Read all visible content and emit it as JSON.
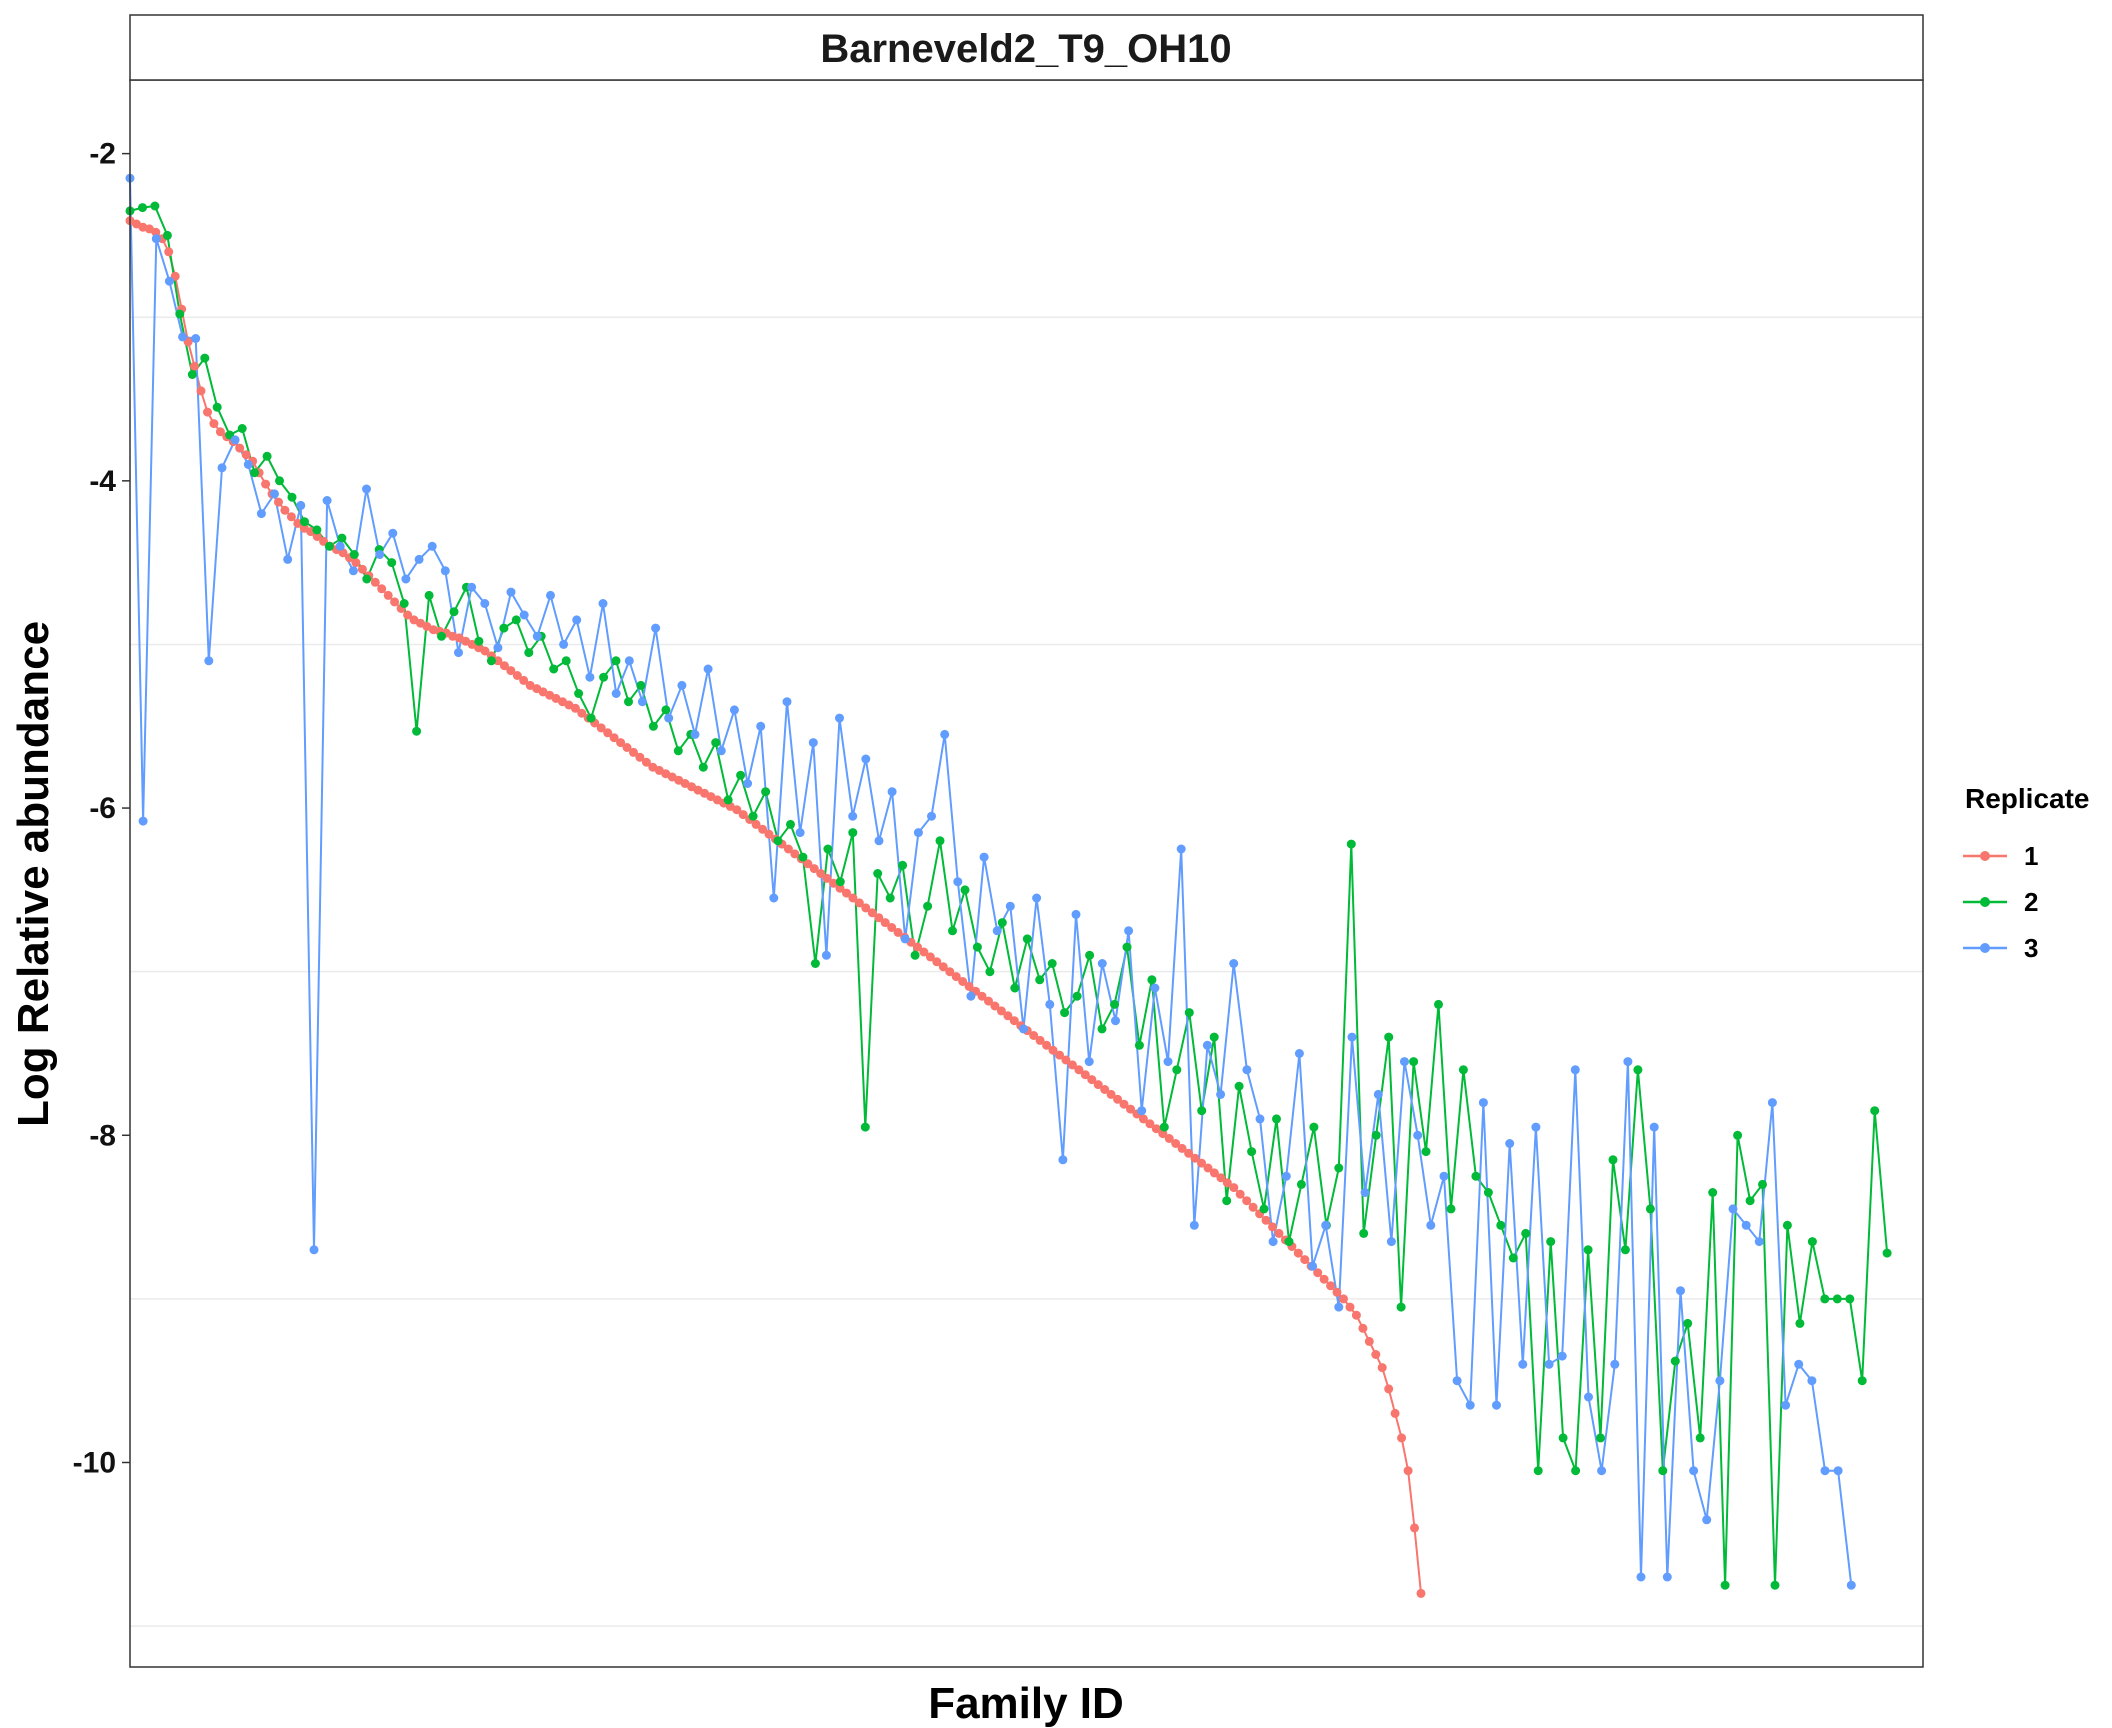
{
  "chart_data": {
    "type": "line",
    "title": "Barneveld2_T9_OH10",
    "xlabel": "Family ID",
    "ylabel": "Log Relative abundance",
    "xlim": [
      0,
      268
    ],
    "ylim": [
      -11.25,
      -1.55
    ],
    "y_ticks": [
      -2,
      -4,
      -6,
      -8,
      -10
    ],
    "y_tick_labels": [
      "-2",
      "-4",
      "-6",
      "-8",
      "-10"
    ],
    "minor_gridlines_y": [
      -3,
      -5,
      -7,
      -9,
      -11
    ],
    "grid": true,
    "legend": {
      "title": "Replicate",
      "position": "right"
    },
    "series": [
      {
        "name": "1",
        "color": "#F8766D",
        "values": [
          -2.41,
          -2.43,
          -2.45,
          -2.46,
          -2.48,
          -2.52,
          -2.6,
          -2.75,
          -2.95,
          -3.15,
          -3.3,
          -3.45,
          -3.58,
          -3.65,
          -3.7,
          -3.73,
          -3.76,
          -3.8,
          -3.84,
          -3.88,
          -3.95,
          -4.02,
          -4.08,
          -4.13,
          -4.18,
          -4.22,
          -4.26,
          -4.29,
          -4.31,
          -4.34,
          -4.37,
          -4.4,
          -4.42,
          -4.44,
          -4.47,
          -4.5,
          -4.54,
          -4.58,
          -4.62,
          -4.66,
          -4.7,
          -4.74,
          -4.78,
          -4.82,
          -4.85,
          -4.87,
          -4.89,
          -4.91,
          -4.92,
          -4.93,
          -4.95,
          -4.96,
          -4.98,
          -5.0,
          -5.02,
          -5.04,
          -5.07,
          -5.1,
          -5.13,
          -5.16,
          -5.19,
          -5.22,
          -5.25,
          -5.27,
          -5.29,
          -5.31,
          -5.33,
          -5.35,
          -5.37,
          -5.39,
          -5.42,
          -5.45,
          -5.48,
          -5.51,
          -5.54,
          -5.57,
          -5.6,
          -5.63,
          -5.66,
          -5.69,
          -5.72,
          -5.75,
          -5.77,
          -5.79,
          -5.81,
          -5.83,
          -5.85,
          -5.87,
          -5.89,
          -5.91,
          -5.93,
          -5.95,
          -5.97,
          -5.99,
          -6.01,
          -6.04,
          -6.07,
          -6.1,
          -6.13,
          -6.16,
          -6.19,
          -6.22,
          -6.25,
          -6.28,
          -6.31,
          -6.34,
          -6.37,
          -6.4,
          -6.43,
          -6.46,
          -6.49,
          -6.52,
          -6.55,
          -6.58,
          -6.61,
          -6.64,
          -6.67,
          -6.7,
          -6.73,
          -6.76,
          -6.79,
          -6.82,
          -6.85,
          -6.88,
          -6.91,
          -6.94,
          -6.97,
          -7.0,
          -7.03,
          -7.06,
          -7.09,
          -7.12,
          -7.15,
          -7.18,
          -7.21,
          -7.24,
          -7.27,
          -7.3,
          -7.33,
          -7.36,
          -7.39,
          -7.42,
          -7.45,
          -7.48,
          -7.51,
          -7.54,
          -7.57,
          -7.6,
          -7.63,
          -7.66,
          -7.69,
          -7.72,
          -7.75,
          -7.78,
          -7.81,
          -7.84,
          -7.87,
          -7.9,
          -7.93,
          -7.96,
          -7.99,
          -8.02,
          -8.05,
          -8.08,
          -8.11,
          -8.14,
          -8.17,
          -8.2,
          -8.23,
          -8.26,
          -8.29,
          -8.32,
          -8.36,
          -8.4,
          -8.44,
          -8.48,
          -8.52,
          -8.56,
          -8.6,
          -8.64,
          -8.68,
          -8.72,
          -8.76,
          -8.8,
          -8.84,
          -8.88,
          -8.92,
          -8.96,
          -9.0,
          -9.05,
          -9.1,
          -9.18,
          -9.26,
          -9.34,
          -9.42,
          -9.55,
          -9.7,
          -9.85,
          -10.05,
          -10.4,
          -10.8
        ],
        "markers": true
      },
      {
        "name": "2",
        "color": "#00BA38",
        "values": [
          -2.35,
          -2.33,
          -2.32,
          -2.5,
          -2.98,
          -3.35,
          -3.25,
          -3.55,
          -3.72,
          -3.68,
          -3.95,
          -3.85,
          -4.0,
          -4.1,
          -4.25,
          -4.3,
          -4.4,
          -4.35,
          -4.45,
          -4.6,
          -4.42,
          -4.5,
          -4.75,
          -5.53,
          -4.7,
          -4.95,
          -4.8,
          -4.65,
          -4.98,
          -5.1,
          -4.9,
          -4.85,
          -5.05,
          -4.95,
          -5.15,
          -5.1,
          -5.3,
          -5.45,
          -5.2,
          -5.1,
          -5.35,
          -5.25,
          -5.5,
          -5.4,
          -5.65,
          -5.55,
          -5.75,
          -5.6,
          -5.95,
          -5.8,
          -6.05,
          -5.9,
          -6.2,
          -6.1,
          -6.3,
          -6.95,
          -6.25,
          -6.45,
          -6.15,
          -7.95,
          -6.4,
          -6.55,
          -6.35,
          -6.9,
          -6.6,
          -6.2,
          -6.75,
          -6.5,
          -6.85,
          -7.0,
          -6.7,
          -7.1,
          -6.8,
          -7.05,
          -6.95,
          -7.25,
          -7.15,
          -6.9,
          -7.35,
          -7.2,
          -6.85,
          -7.45,
          -7.05,
          -7.95,
          -7.6,
          -7.25,
          -7.85,
          -7.4,
          -8.4,
          -7.7,
          -8.1,
          -8.45,
          -7.9,
          -8.65,
          -8.3,
          -7.95,
          -8.55,
          -8.2,
          -6.22,
          -8.6,
          -8.0,
          -7.4,
          -9.05,
          -7.55,
          -8.1,
          -7.2,
          -8.45,
          -7.6,
          -8.25,
          -8.35,
          -8.55,
          -8.75,
          -8.6,
          -10.05,
          -8.65,
          -9.85,
          -10.05,
          -8.7,
          -9.85,
          -8.15,
          -8.7,
          -7.6,
          -8.45,
          -10.05,
          -9.38,
          -9.15,
          -9.85,
          -8.35,
          -10.75,
          -8.0,
          -8.4,
          -8.3,
          -10.75,
          -8.55,
          -9.15,
          -8.65,
          -9.0,
          -9.0,
          -9.0,
          -9.5,
          -7.85,
          -8.72
        ],
        "markers": true
      },
      {
        "name": "3",
        "color": "#619CFF",
        "values": [
          -2.15,
          -6.08,
          -2.52,
          -2.78,
          -3.12,
          -3.13,
          -5.1,
          -3.92,
          -3.75,
          -3.9,
          -4.2,
          -4.08,
          -4.48,
          -4.15,
          -8.7,
          -4.12,
          -4.4,
          -4.55,
          -4.05,
          -4.45,
          -4.32,
          -4.6,
          -4.48,
          -4.4,
          -4.55,
          -5.05,
          -4.65,
          -4.75,
          -5.02,
          -4.68,
          -4.82,
          -4.95,
          -4.7,
          -5.0,
          -4.85,
          -5.2,
          -4.75,
          -5.3,
          -5.1,
          -5.35,
          -4.9,
          -5.45,
          -5.25,
          -5.55,
          -5.15,
          -5.65,
          -5.4,
          -5.85,
          -5.5,
          -6.55,
          -5.35,
          -6.15,
          -5.6,
          -6.9,
          -5.45,
          -6.05,
          -5.7,
          -6.2,
          -5.9,
          -6.8,
          -6.15,
          -6.05,
          -5.55,
          -6.45,
          -7.15,
          -6.3,
          -6.75,
          -6.6,
          -7.35,
          -6.55,
          -7.2,
          -8.15,
          -6.65,
          -7.55,
          -6.95,
          -7.3,
          -6.75,
          -7.85,
          -7.1,
          -7.55,
          -6.25,
          -8.55,
          -7.45,
          -7.75,
          -6.95,
          -7.6,
          -7.9,
          -8.65,
          -8.25,
          -7.5,
          -8.8,
          -8.55,
          -9.05,
          -7.4,
          -8.35,
          -7.75,
          -8.65,
          -7.55,
          -8.0,
          -8.55,
          -8.25,
          -9.5,
          -9.65,
          -7.8,
          -9.65,
          -8.05,
          -9.4,
          -7.95,
          -9.4,
          -9.35,
          -7.6,
          -9.6,
          -10.05,
          -9.4,
          -7.55,
          -10.7,
          -7.95,
          -10.7,
          -8.95,
          -10.05,
          -10.35,
          -9.5,
          -8.45,
          -8.55,
          -8.65,
          -7.8,
          -9.65,
          -9.4,
          -9.5,
          -10.05,
          -10.05,
          -10.75
        ]
      }
    ]
  }
}
